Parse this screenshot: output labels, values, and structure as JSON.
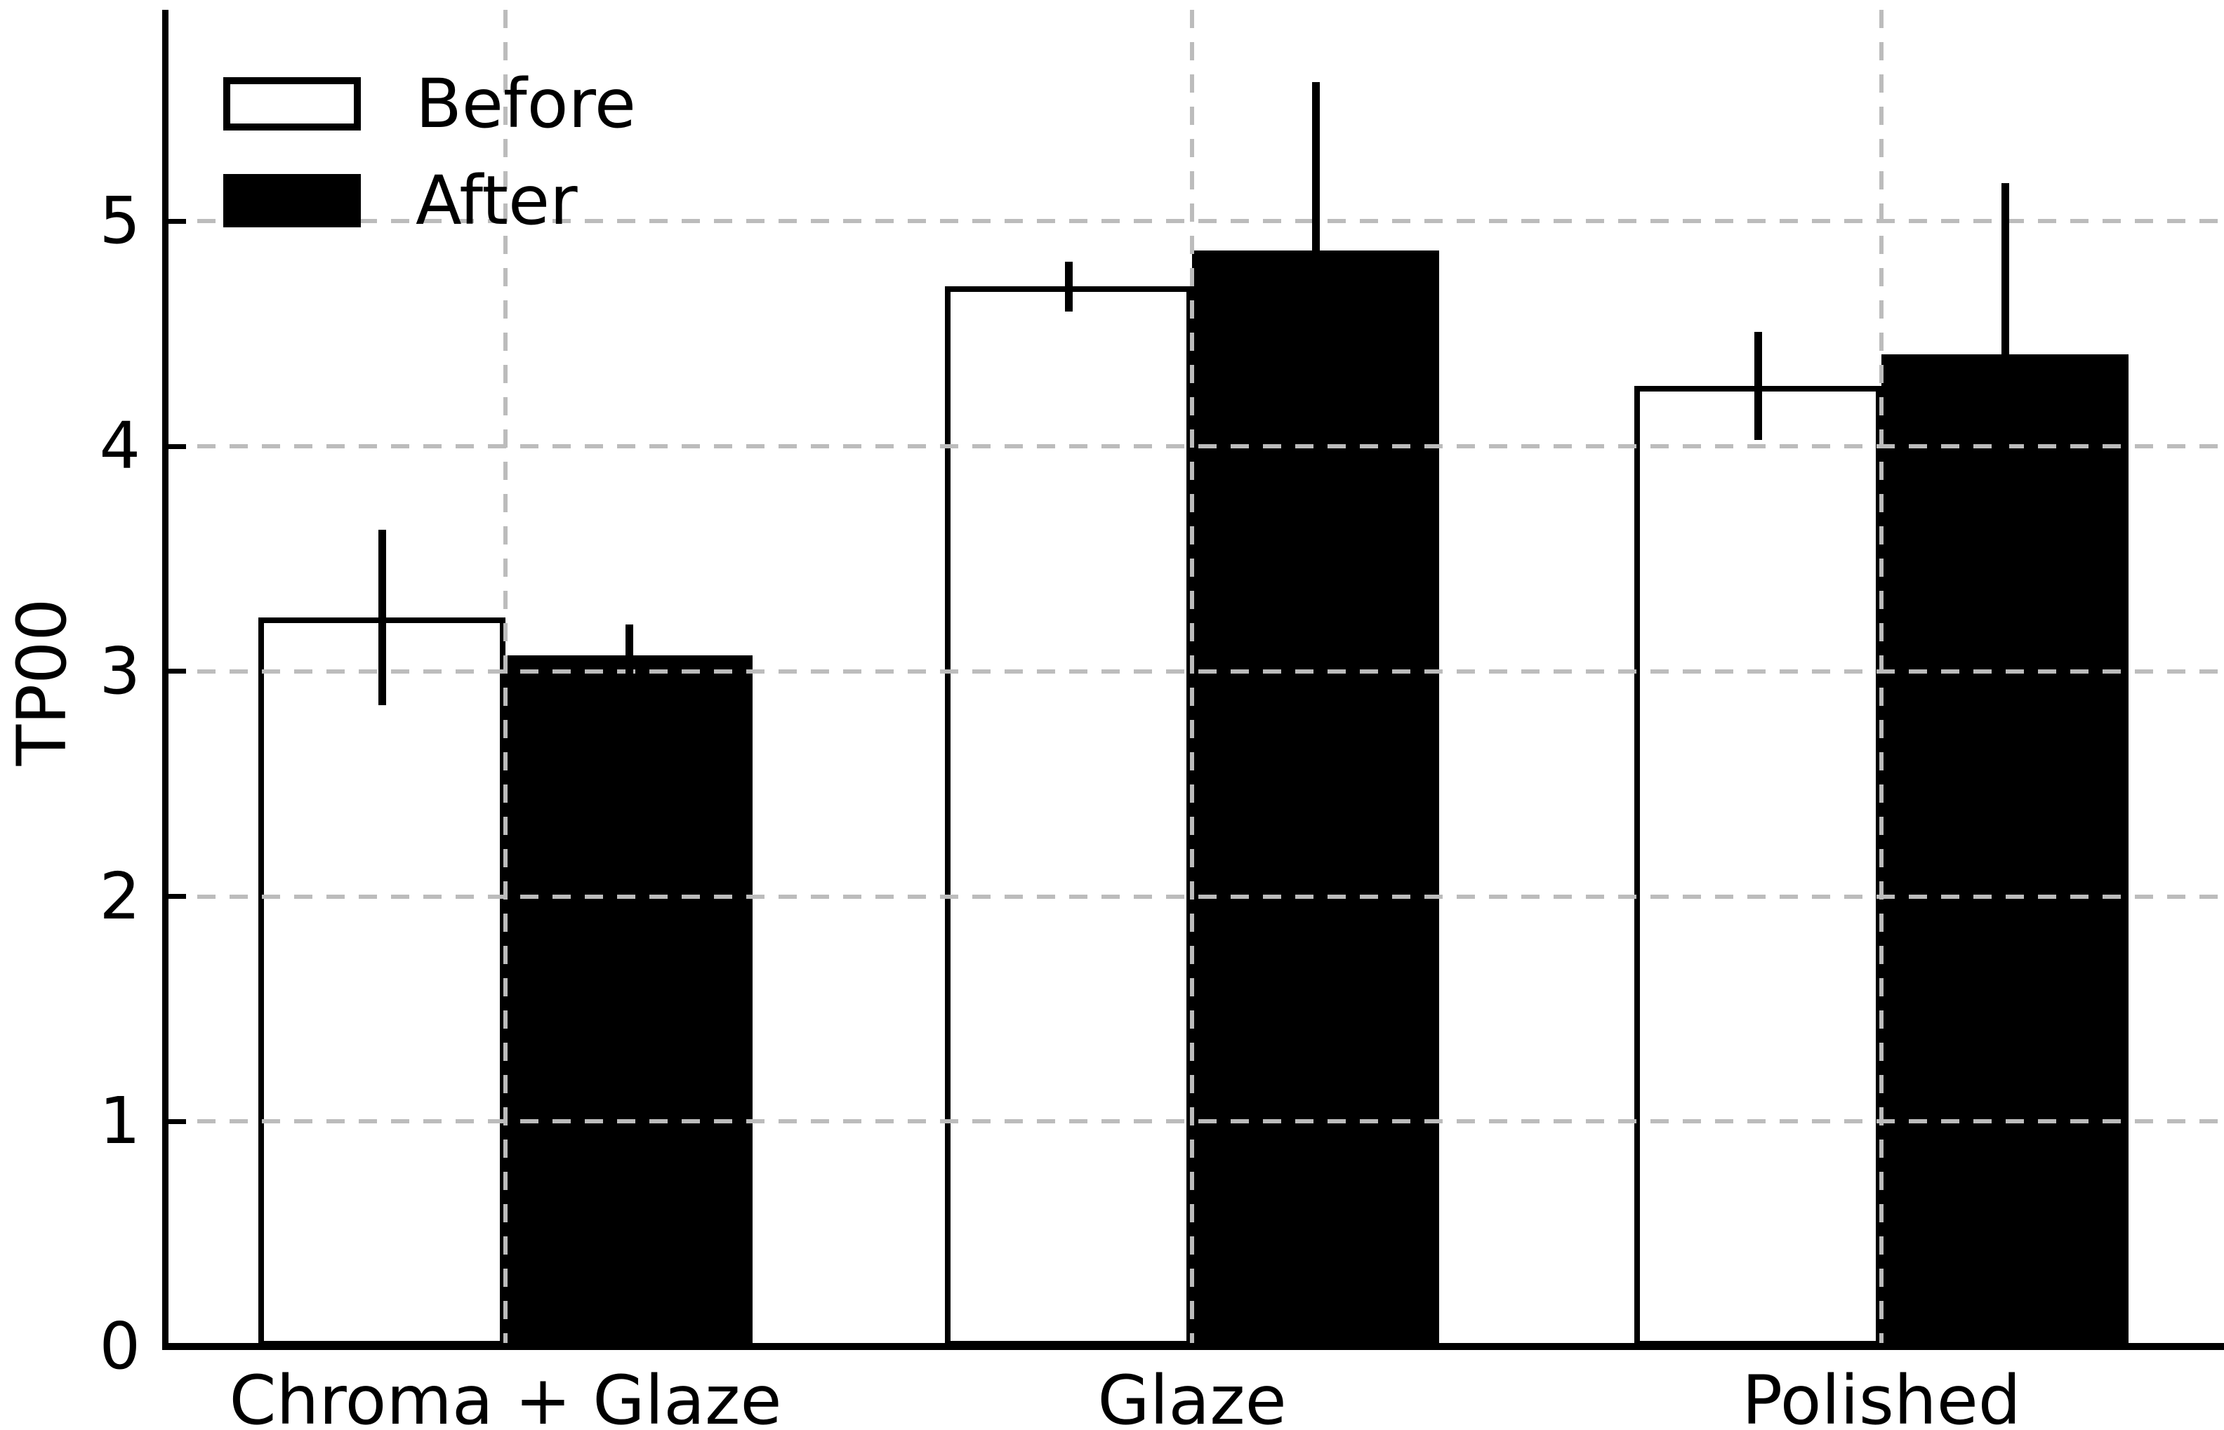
{
  "chart_data": {
    "type": "bar",
    "title": "",
    "xlabel": "",
    "ylabel": "TP00",
    "categories": [
      "Chroma + Glaze",
      "Glaze",
      "Polished"
    ],
    "series": [
      {
        "name": "Before",
        "fill": "#ffffff",
        "edge": "#000000",
        "values": [
          3.24,
          4.71,
          4.27
        ],
        "errors": [
          0.39,
          0.11,
          0.24
        ]
      },
      {
        "name": "After",
        "fill": "#000000",
        "edge": "#000000",
        "values": [
          3.07,
          4.87,
          4.41
        ],
        "errors": [
          0.14,
          0.75,
          0.76
        ]
      }
    ],
    "ylim": [
      0,
      5.94
    ],
    "yticks": [
      "0",
      "1",
      "2",
      "3",
      "4",
      "5"
    ],
    "grid": true,
    "grid_style": "dashed",
    "grid_color": "#bcbcbc",
    "bar_color_before": "#ffffff",
    "bar_color_after": "#000000",
    "errorbar_color": "#000000",
    "legend_position": "upper left"
  },
  "legend": {
    "items": [
      {
        "label": "Before"
      },
      {
        "label": "After"
      }
    ]
  }
}
